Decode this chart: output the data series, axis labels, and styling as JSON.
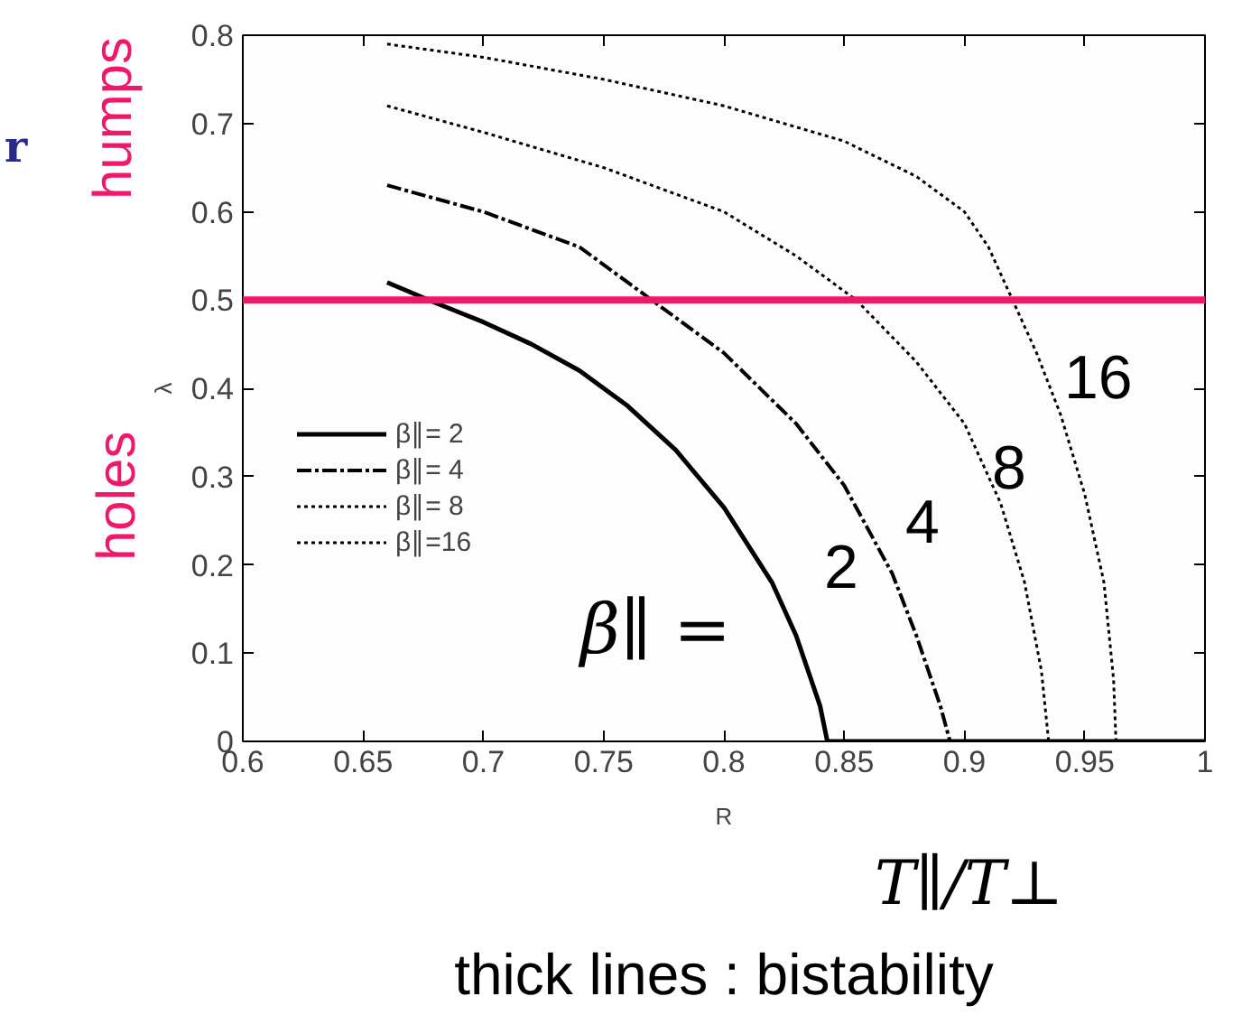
{
  "chart_data": {
    "type": "line",
    "xlabel": "R",
    "ylabel": "λ",
    "xlim": [
      0.6,
      1.0
    ],
    "ylim": [
      0,
      0.8
    ],
    "xticks": [
      0.6,
      0.65,
      0.7,
      0.75,
      0.8,
      0.85,
      0.9,
      0.95,
      1
    ],
    "yticks": [
      0,
      0.1,
      0.2,
      0.3,
      0.4,
      0.5,
      0.6,
      0.7,
      0.8
    ],
    "grid": false,
    "legend": "left",
    "marker": "none",
    "series": [
      {
        "name": "β∥= 2",
        "color": "#000000",
        "line_style": "solid",
        "x": [
          0.66,
          0.68,
          0.7,
          0.72,
          0.74,
          0.76,
          0.78,
          0.8,
          0.82,
          0.83,
          0.84,
          0.843,
          1.0
        ],
        "values": [
          0.52,
          0.497,
          0.475,
          0.45,
          0.42,
          0.38,
          0.33,
          0.265,
          0.18,
          0.12,
          0.04,
          0,
          0
        ]
      },
      {
        "name": "β∥= 4",
        "color": "#000000",
        "line_style": "dashed",
        "x": [
          0.66,
          0.7,
          0.74,
          0.77,
          0.8,
          0.83,
          0.85,
          0.87,
          0.88,
          0.89,
          0.894,
          1.0
        ],
        "values": [
          0.63,
          0.6,
          0.56,
          0.5,
          0.44,
          0.36,
          0.29,
          0.19,
          0.12,
          0.04,
          0,
          0
        ]
      },
      {
        "name": "β∥= 8",
        "color": "#000000",
        "line_style": "dotted",
        "x": [
          0.66,
          0.7,
          0.75,
          0.8,
          0.83,
          0.855,
          0.88,
          0.9,
          0.915,
          0.925,
          0.932,
          0.935,
          1.0
        ],
        "values": [
          0.72,
          0.69,
          0.65,
          0.6,
          0.55,
          0.5,
          0.43,
          0.36,
          0.27,
          0.18,
          0.08,
          0,
          0
        ]
      },
      {
        "name": "β∥=16",
        "color": "#000000",
        "line_style": "dotted",
        "x": [
          0.66,
          0.7,
          0.75,
          0.8,
          0.85,
          0.88,
          0.9,
          0.91,
          0.92,
          0.93,
          0.94,
          0.95,
          0.958,
          0.962,
          0.963,
          1.0
        ],
        "values": [
          0.79,
          0.775,
          0.75,
          0.72,
          0.68,
          0.64,
          0.6,
          0.56,
          0.5,
          0.44,
          0.37,
          0.28,
          0.18,
          0.07,
          0,
          0
        ]
      }
    ],
    "ref_lines": [
      {
        "axis": "y",
        "value": 0.5,
        "color": "#f0186a",
        "line_style": "solid"
      }
    ],
    "annotations": [
      "β∥ =",
      "2",
      "4",
      "8",
      "16",
      "humps",
      "holes",
      "r",
      "T∥/T⊥",
      "thick lines : bistability"
    ]
  }
}
